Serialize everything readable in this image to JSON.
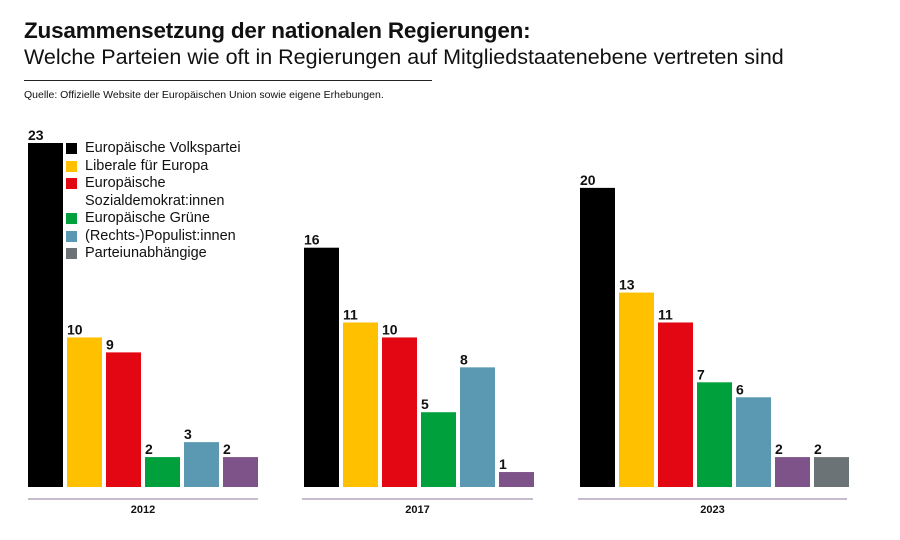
{
  "title": "Zusammensetzung der nationalen Regierungen:",
  "subtitle": "Welche Parteien wie oft in Regierungen auf Mitgliedstaatenebene vertreten sind",
  "source": "Quelle: Offizielle Website der Europäischen Union sowie eigene Erhebungen.",
  "chart_data": {
    "type": "bar",
    "categories": [
      "2012",
      "2017",
      "2023"
    ],
    "ylim": [
      0,
      23
    ],
    "series": [
      {
        "name": "Europäische Volkspartei",
        "color": "#000000",
        "values": [
          23,
          16,
          20
        ]
      },
      {
        "name": "Liberale für Europa",
        "color": "#FFC000",
        "values": [
          10,
          11,
          13
        ]
      },
      {
        "name": "Europäische\nSozialdemokrat:innen",
        "color": "#E30613",
        "values": [
          9,
          10,
          11
        ]
      },
      {
        "name": "Europäische Grüne",
        "color": "#00A03C",
        "values": [
          2,
          5,
          7
        ]
      },
      {
        "name": "(Rechts-)Populist:innen",
        "color": "#5B99B2",
        "values": [
          3,
          8,
          6
        ]
      },
      {
        "name": "Parteiunabhängige",
        "color": "#6B7376",
        "values": [
          null,
          null,
          2
        ]
      }
    ],
    "extra_series": {
      "name": "",
      "color": "#7E5389",
      "values": [
        2,
        1,
        2
      ]
    },
    "legend": "top-left",
    "grid": false
  }
}
